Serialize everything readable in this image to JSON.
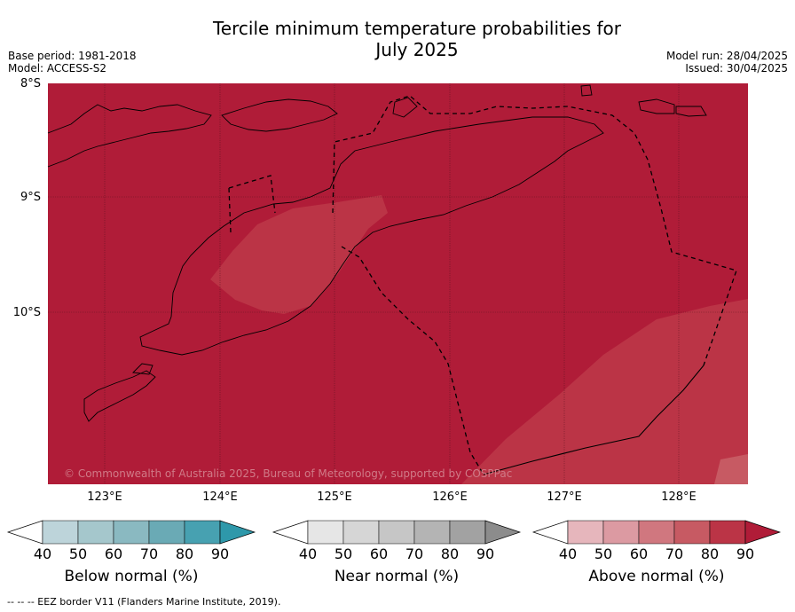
{
  "title_line1": "Tercile minimum temperature probabilities for",
  "title_line2": "July 2025",
  "base_period": "Base period: 1981-2018",
  "model": "Model: ACCESS-S2",
  "model_run": "Model run: 28/04/2025",
  "issued": "Issued: 30/04/2025",
  "lat_labels": [
    "8°S",
    "9°S",
    "10°S"
  ],
  "lon_labels": [
    "123°E",
    "124°E",
    "125°E",
    "126°E",
    "127°E",
    "128°E"
  ],
  "copyright": "© Commonwealth of Australia 2025, Bureau of Meteorology, supported by COSPPac",
  "colorbars": [
    {
      "name": "below",
      "title": "Below normal (%)",
      "ticks": [
        "40",
        "50",
        "60",
        "70",
        "80",
        "90"
      ],
      "colors": [
        "#ffffff",
        "#bdd4da",
        "#a5c7cc",
        "#8ab9c1",
        "#6aaab5",
        "#47a1b1",
        "#2e98aa"
      ]
    },
    {
      "name": "near",
      "title": "Near normal (%)",
      "ticks": [
        "40",
        "50",
        "60",
        "70",
        "80",
        "90"
      ],
      "colors": [
        "#ffffff",
        "#e6e6e6",
        "#d6d6d6",
        "#c6c6c6",
        "#b4b4b4",
        "#a2a2a2",
        "#8c8c8c"
      ]
    },
    {
      "name": "above",
      "title": "Above normal (%)",
      "ticks": [
        "40",
        "50",
        "60",
        "70",
        "80",
        "90"
      ],
      "colors": [
        "#ffffff",
        "#e6b6bc",
        "#dc9aa2",
        "#d0777f",
        "#c75a63",
        "#bb3446",
        "#b01c38"
      ]
    }
  ],
  "footer": "--  --  -- EEZ border V11 (Flanders Marine Institute, 2019).",
  "map_colors": {
    "above_90": "#b01c38",
    "above_80": "#bb3446"
  }
}
